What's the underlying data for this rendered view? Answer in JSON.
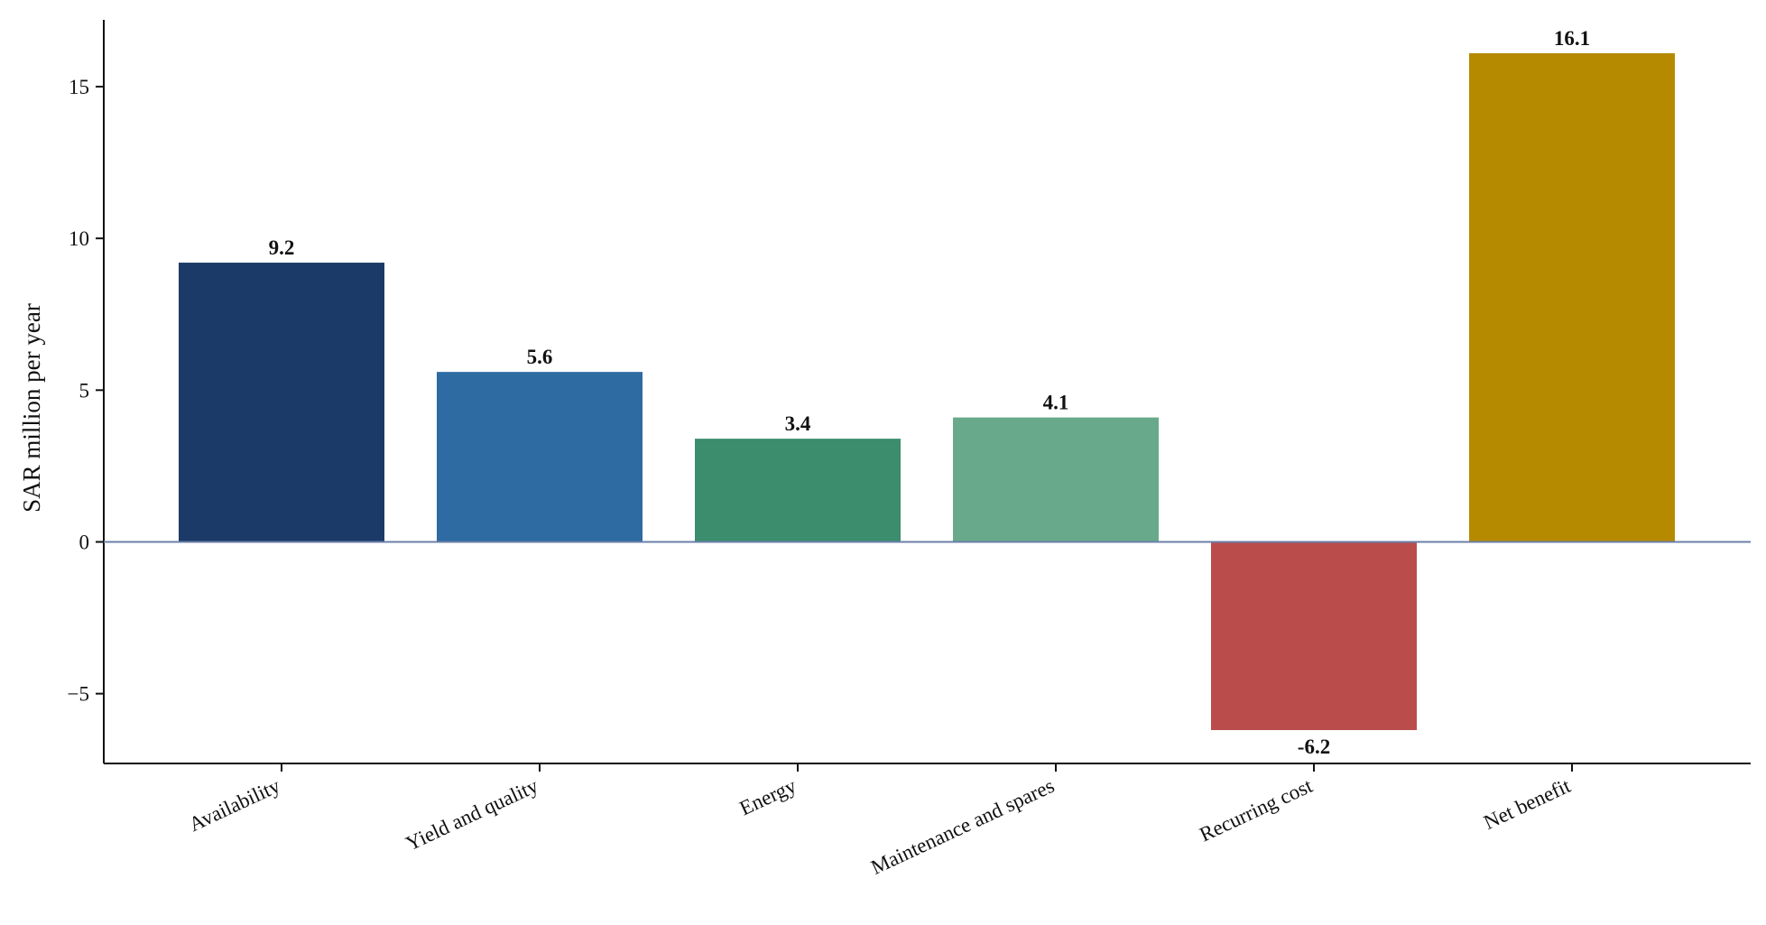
{
  "chart_data": {
    "type": "bar",
    "title": "",
    "xlabel": "",
    "ylabel": "SAR million per year",
    "ylim": [
      -7.3,
      17.2
    ],
    "yticks": [
      -5,
      0,
      5,
      10,
      15
    ],
    "ytick_labels": [
      "−5",
      "0",
      "5",
      "10",
      "15"
    ],
    "grid": false,
    "categories": [
      "Availability",
      "Yield and quality",
      "Energy",
      "Maintenance and spares",
      "Recurring cost",
      "Net benefit"
    ],
    "values": [
      9.2,
      5.6,
      3.4,
      4.1,
      -6.2,
      16.1
    ],
    "value_labels": [
      "9.2",
      "5.6",
      "3.4",
      "4.1",
      "-6.2",
      "16.1"
    ],
    "colors": [
      "#1b3a68",
      "#2e6ba3",
      "#3c8c6e",
      "#68a98c",
      "#ba4d4c",
      "#b68a00"
    ],
    "zero_line_color": "#6b7fa8"
  }
}
